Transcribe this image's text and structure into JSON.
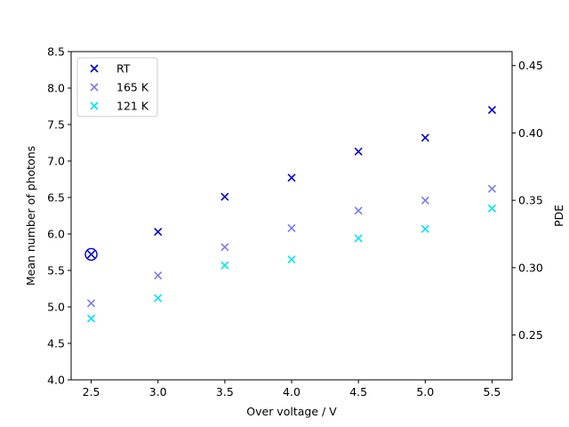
{
  "chart_data": {
    "type": "scatter",
    "xlabel": "Over voltage / V",
    "ylabel": "Mean number of photons",
    "y2label": "PDE",
    "xlim": [
      2.35,
      5.65
    ],
    "ylim": [
      4.0,
      8.5
    ],
    "y2lim": [
      0.2167,
      0.4604
    ],
    "xticks": [
      "2.5",
      "3.0",
      "3.5",
      "4.0",
      "4.5",
      "5.0",
      "5.5"
    ],
    "yticks": [
      "4.0",
      "4.5",
      "5.0",
      "5.5",
      "6.0",
      "6.5",
      "7.0",
      "7.5",
      "8.0",
      "8.5"
    ],
    "y2ticks": [
      "0.25",
      "0.30",
      "0.35",
      "0.40",
      "0.45"
    ],
    "legend_position": "upper-left",
    "grid": false,
    "series": [
      {
        "name": "RT",
        "color": "#0000cd",
        "marker": "x",
        "x": [
          2.5,
          3.0,
          3.5,
          4.0,
          4.5,
          5.0,
          5.5
        ],
        "y": [
          5.72,
          6.03,
          6.51,
          6.77,
          7.13,
          7.32,
          7.7
        ]
      },
      {
        "name": "165 K",
        "color": "#7b7bee",
        "marker": "x",
        "x": [
          2.5,
          3.0,
          3.5,
          4.0,
          4.5,
          5.0,
          5.5
        ],
        "y": [
          5.05,
          5.43,
          5.82,
          6.08,
          6.32,
          6.46,
          6.62
        ]
      },
      {
        "name": "121 K",
        "color": "#00e5ee",
        "marker": "x",
        "x": [
          2.5,
          3.0,
          3.5,
          4.0,
          4.5,
          5.0,
          5.5
        ],
        "y": [
          4.84,
          5.12,
          5.57,
          5.65,
          5.94,
          6.07,
          6.35
        ]
      }
    ],
    "annotations": [
      {
        "type": "circle-marker",
        "x": 2.5,
        "y": 5.72,
        "color": "#0000cd"
      }
    ]
  }
}
